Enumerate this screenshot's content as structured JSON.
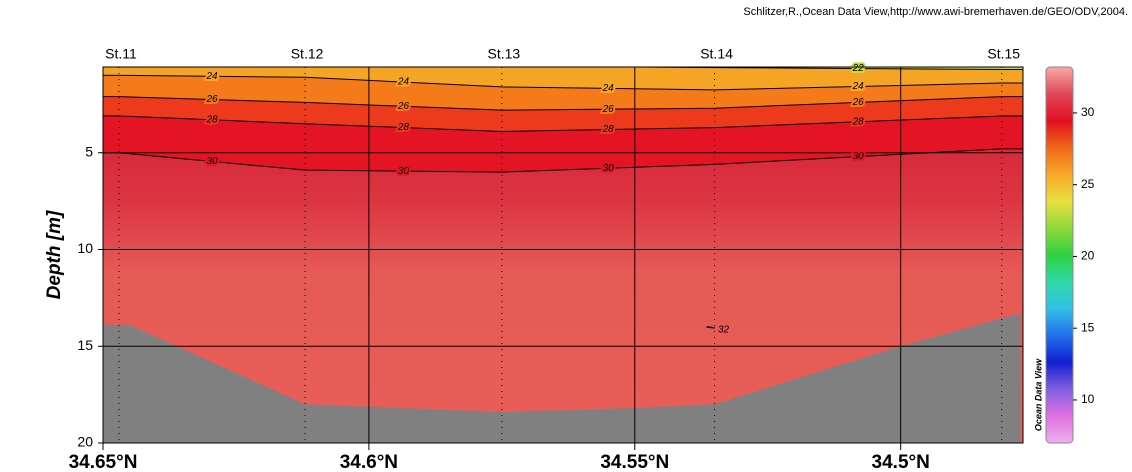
{
  "chart_data": {
    "type": "section",
    "credit": "Schlitzer,R.,Ocean Data View,http://www.awi-bremerhaven.de/GEO/ODV,2004.",
    "watermark": "Ocean Data View",
    "y_label": "Depth [m]",
    "xlim": [
      34.65,
      34.477
    ],
    "xticks": [
      {
        "value": 34.65,
        "label": "34.65°N"
      },
      {
        "value": 34.6,
        "label": "34.6°N"
      },
      {
        "value": 34.55,
        "label": "34.55°N"
      },
      {
        "value": 34.5,
        "label": "34.5°N"
      }
    ],
    "ylim": [
      0.57,
      20
    ],
    "yticks": [
      5,
      10,
      15,
      20
    ],
    "y_reversed": true,
    "grid": true,
    "stations": {
      "names": [
        "St.11",
        "St.12",
        "St.13",
        "St.14",
        "St.15"
      ],
      "x": [
        34.647,
        34.612,
        34.575,
        34.535,
        34.481
      ]
    },
    "contours": [
      {
        "level": 30,
        "color": "#e41424",
        "depths": [
          5.0,
          5.9,
          6.0,
          5.6,
          4.8
        ]
      },
      {
        "level": 28,
        "color": "#ee3a1c",
        "depths": [
          3.1,
          3.5,
          3.9,
          3.7,
          3.1
        ]
      },
      {
        "level": 26,
        "color": "#f47a1a",
        "depths": [
          2.1,
          2.4,
          2.8,
          2.7,
          2.1
        ]
      },
      {
        "level": 24,
        "color": "#f6a424",
        "depths": [
          1.0,
          1.1,
          1.6,
          1.75,
          1.4
        ]
      },
      {
        "level": 22,
        "color": "#c4d840",
        "depths": [
          null,
          null,
          null,
          0.6,
          0.7
        ]
      },
      {
        "level": 32,
        "color": "#e85e58",
        "depths": [
          null,
          null,
          null,
          14.0,
          null
        ]
      }
    ],
    "bottom": {
      "color": "#808080",
      "x": [
        34.65,
        34.645,
        34.612,
        34.575,
        34.55,
        34.535,
        34.5,
        34.4775
      ],
      "depths": [
        13.9,
        13.9,
        18.0,
        18.4,
        18.2,
        18.0,
        15.0,
        13.3
      ]
    },
    "colorbar": {
      "clim": [
        7,
        33.2
      ],
      "ticks": [
        10,
        15,
        20,
        25,
        30
      ],
      "colors": [
        "#f0b0f0",
        "#e070e0",
        "#8060e0",
        "#1020d0",
        "#2070e8",
        "#30c0e8",
        "#30d8a8",
        "#30d040",
        "#90d838",
        "#e8e040",
        "#f8a828",
        "#f06818",
        "#e01020",
        "#e04858",
        "#f8a8a8"
      ]
    }
  }
}
